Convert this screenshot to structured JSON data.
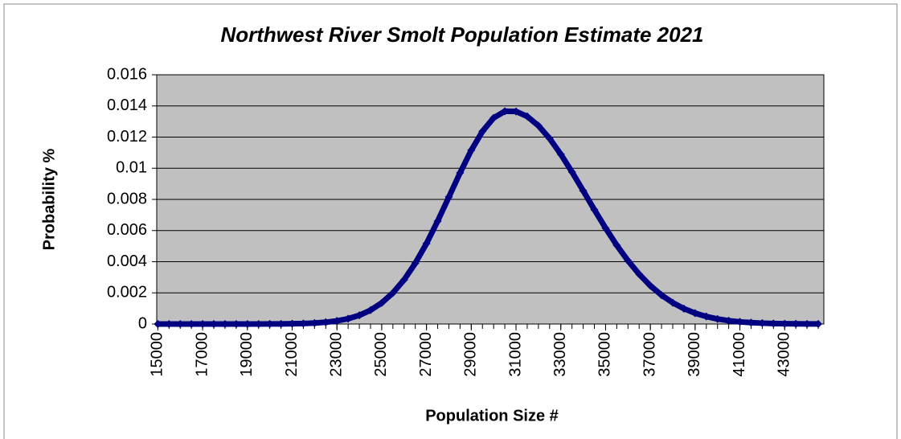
{
  "chart_data": {
    "type": "line",
    "title": "Northwest River Smolt Population Estimate 2021",
    "x_label": "Population Size #",
    "y_label": "Probability %",
    "x": [
      15000,
      15500,
      16000,
      16500,
      17000,
      17500,
      18000,
      18500,
      19000,
      19500,
      20000,
      20500,
      21000,
      21500,
      22000,
      22500,
      23000,
      23500,
      24000,
      24500,
      25000,
      25500,
      26000,
      26500,
      27000,
      27500,
      28000,
      28500,
      29000,
      29500,
      30000,
      30500,
      31000,
      31500,
      32000,
      32500,
      33000,
      33500,
      34000,
      34500,
      35000,
      35500,
      36000,
      36500,
      37000,
      37500,
      38000,
      38500,
      39000,
      39500,
      40000,
      40500,
      41000,
      41500,
      42000,
      42500,
      43000,
      43500,
      44000,
      44500
    ],
    "series": [
      {
        "name": "Probability",
        "color": "#000080",
        "values": [
          0,
          0,
          0,
          0,
          0,
          0,
          0,
          1e-06,
          1e-06,
          2e-06,
          4e-06,
          8e-06,
          1.7e-05,
          3.3e-05,
          6.3e-05,
          0.000114,
          0.000201,
          0.000342,
          0.000561,
          0.000888,
          0.001356,
          0.002,
          0.002841,
          0.003902,
          0.005168,
          0.006609,
          0.008152,
          0.009705,
          0.011152,
          0.012366,
          0.01323,
          0.013661,
          0.013647,
          0.013326,
          0.012734,
          0.011909,
          0.010898,
          0.009761,
          0.008554,
          0.007336,
          0.006158,
          0.005057,
          0.004065,
          0.003198,
          0.002461,
          0.001854,
          0.001367,
          0.000987,
          0.000696,
          0.000481,
          0.000325,
          0.000215,
          0.000139,
          8.8e-05,
          5.5e-05,
          3.3e-05,
          2e-05,
          1.1e-05,
          6e-06,
          4e-06
        ]
      }
    ],
    "xlim": [
      14950,
      44750
    ],
    "xticks": [
      15000,
      17000,
      19000,
      21000,
      23000,
      25000,
      27000,
      29000,
      31000,
      33000,
      35000,
      37000,
      39000,
      41000,
      43000
    ],
    "ylim": [
      0,
      0.016
    ],
    "yticks": [
      0,
      0.002,
      0.004,
      0.006,
      0.008,
      0.01,
      0.012,
      0.014,
      0.016
    ],
    "grid": true,
    "plot_background": "#c0c0c0"
  }
}
